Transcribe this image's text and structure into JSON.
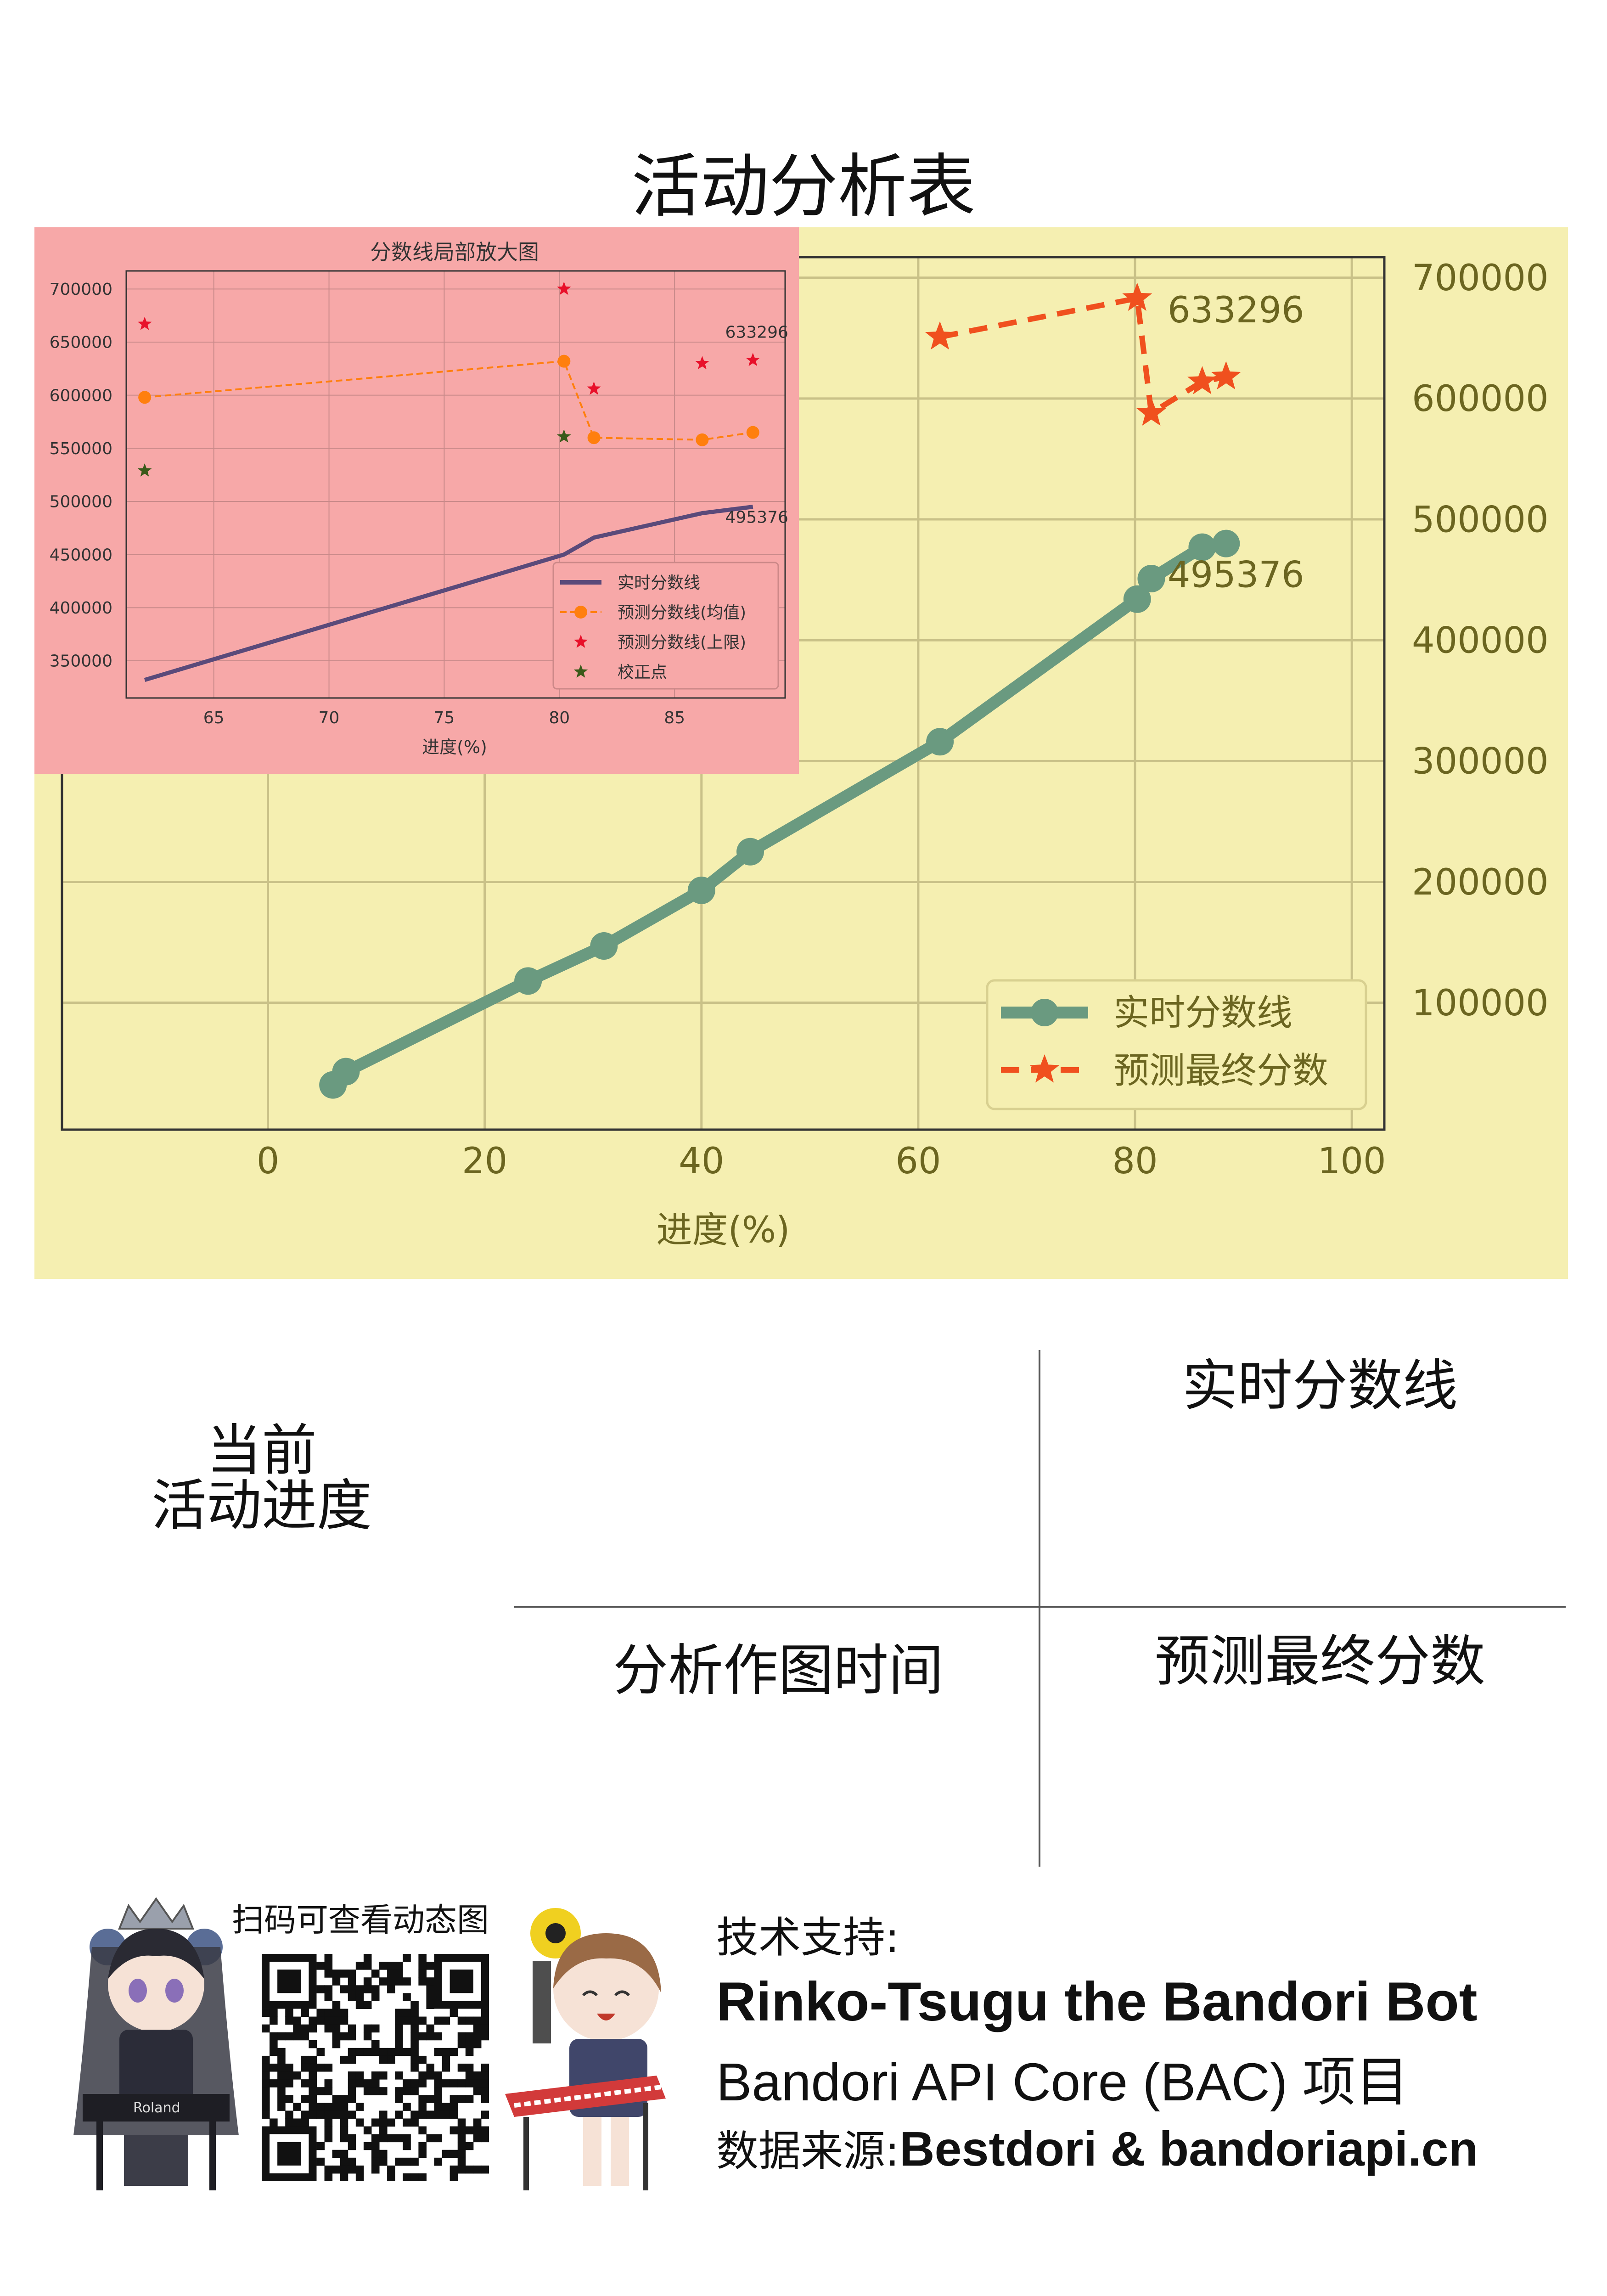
{
  "page_title": "活动分析表",
  "chart_data": [
    {
      "id": "main",
      "type": "line",
      "xlabel": "进度(%)",
      "xlim": [
        -19,
        103
      ],
      "ylim": [
        -5000,
        717000
      ],
      "x_ticks": [
        0,
        20,
        40,
        60,
        80,
        100
      ],
      "y_ticks": [
        100000,
        200000,
        300000,
        400000,
        500000,
        600000,
        700000
      ],
      "grid": true,
      "legend_position": "lower-right",
      "series": [
        {
          "name": "实时分数线",
          "color": "#6a9a80",
          "marker": "circle",
          "line_style": "solid",
          "points": [
            [
              6,
              32000
            ],
            [
              7.2,
              43000
            ],
            [
              24,
              118000
            ],
            [
              31,
              147000
            ],
            [
              40,
              193000
            ],
            [
              44.5,
              225000
            ],
            [
              62,
              316000
            ],
            [
              80.2,
              434000
            ],
            [
              81.5,
              451000
            ],
            [
              86.2,
              477000
            ],
            [
              88.4,
              480000
            ]
          ]
        },
        {
          "name": "预测最终分数",
          "color": "#f0501e",
          "marker": "star",
          "line_style": "dashed",
          "points": [
            [
              62,
              651000
            ],
            [
              80.2,
              683000
            ],
            [
              81.5,
              588000
            ],
            [
              86.2,
              614000
            ],
            [
              88.4,
              618000
            ]
          ]
        }
      ],
      "annotations": [
        {
          "text": "633296",
          "x": 83,
          "y": 663000
        },
        {
          "text": "495376",
          "x": 83,
          "y": 444000
        }
      ]
    },
    {
      "id": "inset",
      "type": "line",
      "title": "分数线局部放大图",
      "xlabel": "进度(%)",
      "xlim": [
        61.2,
        89.8
      ],
      "ylim": [
        315000,
        717000
      ],
      "x_ticks": [
        65,
        70,
        75,
        80,
        85
      ],
      "y_ticks": [
        350000,
        400000,
        450000,
        500000,
        550000,
        600000,
        650000,
        700000
      ],
      "grid": true,
      "legend_position": "lower-right",
      "series": [
        {
          "name": "实时分数线",
          "color": "#5a4a7a",
          "marker": "none",
          "line_style": "solid",
          "points": [
            [
              62,
              332000
            ],
            [
              80.2,
              450000
            ],
            [
              81.5,
              466000
            ],
            [
              86.2,
              489000
            ],
            [
              88.4,
              495000
            ]
          ]
        },
        {
          "name": "预测分数线(均值)",
          "color": "#ff7f0e",
          "marker": "circle",
          "line_style": "dashed",
          "points": [
            [
              62,
              598000
            ],
            [
              80.2,
              632000
            ],
            [
              81.5,
              560000
            ],
            [
              86.2,
              558000
            ],
            [
              88.4,
              565000
            ]
          ]
        },
        {
          "name": "预测分数线(上限)",
          "color": "#e8102a",
          "marker": "star",
          "line_style": "none",
          "points": [
            [
              62,
              667000
            ],
            [
              80.2,
              700000
            ],
            [
              81.5,
              606000
            ],
            [
              86.2,
              630000
            ],
            [
              88.4,
              633000
            ]
          ]
        },
        {
          "name": "校正点",
          "color": "#3a5a1a",
          "marker": "star",
          "line_style": "none",
          "points": [
            [
              62,
              529000
            ],
            [
              80.2,
              561000
            ]
          ]
        }
      ],
      "annotations": [
        {
          "text": "633296",
          "x": 87.2,
          "y": 654000
        },
        {
          "text": "495376",
          "x": 87.2,
          "y": 480000
        }
      ]
    }
  ],
  "table": {
    "cell_progress": "当前\n活动进度",
    "cell_realtime": "实时分数线",
    "cell_time": "分析作图时间",
    "cell_predict": "预测最终分数"
  },
  "footer": {
    "qr_caption": "扫码可查看动态图",
    "tech_label": "技术支持:",
    "bot_name": "Rinko-Tsugu the Bandori Bot",
    "project_name": "Bandori API Core (BAC) 项目",
    "source_label": "数据来源:",
    "source_name": "Bestdori  & bandoriapi.cn",
    "keyboard_brand": "Roland"
  }
}
